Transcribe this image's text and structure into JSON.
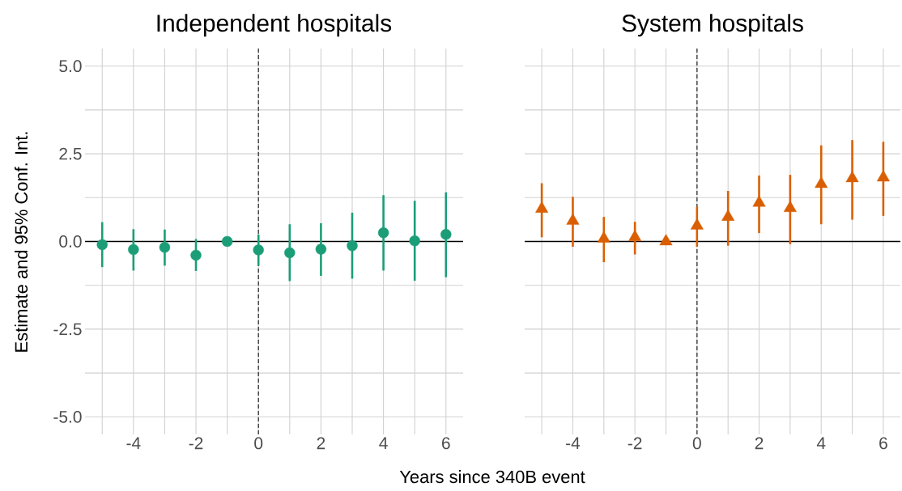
{
  "chart_data": [
    {
      "type": "scatter",
      "title": "Independent hospitals",
      "xlabel": "Years since 340B event",
      "ylabel": "Estimate and 95% Conf. Int.",
      "series": [
        {
          "color": "#1b9e77",
          "marker": "circle",
          "x": [
            -5,
            -4,
            -3,
            -2,
            -1,
            0,
            1,
            2,
            3,
            4,
            5,
            6
          ],
          "values": [
            -0.09,
            -0.23,
            -0.17,
            -0.39,
            0,
            -0.24,
            -0.32,
            -0.22,
            -0.12,
            0.25,
            0.02,
            0.2
          ],
          "errors": [
            [
              -0.73,
              0.55
            ],
            [
              -0.83,
              0.35
            ],
            [
              -0.69,
              0.34
            ],
            [
              -0.84,
              0.07
            ],
            null,
            [
              -0.69,
              0.2
            ],
            [
              -1.13,
              0.49
            ],
            [
              -0.98,
              0.52
            ],
            [
              -1.06,
              0.82
            ],
            [
              -0.83,
              1.32
            ],
            [
              -1.12,
              1.16
            ],
            [
              -1.02,
              1.4
            ]
          ]
        }
      ],
      "xlim": [
        -5.55,
        6.55
      ],
      "ylim": [
        -5.5,
        5.5
      ],
      "xticks": [
        {
          "value": -5,
          "label": null
        },
        -4,
        {
          "value": -3,
          "label": null
        },
        -2,
        {
          "value": -1,
          "label": null
        },
        0,
        {
          "value": 1,
          "label": null
        },
        2,
        {
          "value": 3,
          "label": null
        },
        4,
        {
          "value": 5,
          "label": null
        },
        6
      ],
      "yticks": [
        {
          "value": -5,
          "label": "-5.0"
        },
        {
          "value": -3.75,
          "label": null
        },
        {
          "value": -2.5,
          "label": "-2.5"
        },
        {
          "value": -1.25,
          "label": null
        },
        {
          "value": 0,
          "label": "0.0"
        },
        {
          "value": 1.25,
          "label": null
        },
        {
          "value": 2.5,
          "label": "2.5"
        },
        {
          "value": 3.75,
          "label": null
        },
        {
          "value": 5,
          "label": "5.0"
        }
      ],
      "grid": true,
      "ref_lines": [
        {
          "axis": "y",
          "value": 0,
          "color": "#000000",
          "line_style": "solid"
        },
        {
          "axis": "x",
          "value": 0,
          "color": "#333333",
          "line_style": "dashed"
        }
      ]
    },
    {
      "type": "scatter",
      "title": "System hospitals",
      "series": [
        {
          "color": "#d95f02",
          "marker": "triangle",
          "x": [
            -5,
            -4,
            -3,
            -2,
            -1,
            0,
            1,
            2,
            3,
            4,
            5,
            6
          ],
          "values": [
            0.93,
            0.59,
            0.08,
            0.12,
            0,
            0.45,
            0.7,
            1.1,
            0.95,
            1.64,
            1.8,
            1.82
          ],
          "errors": [
            [
              0.12,
              1.66
            ],
            [
              -0.15,
              1.27
            ],
            [
              -0.59,
              0.7
            ],
            [
              -0.37,
              0.56
            ],
            null,
            [
              -0.15,
              0.99
            ],
            [
              -0.12,
              1.44
            ],
            [
              0.24,
              1.88
            ],
            [
              -0.08,
              1.9
            ],
            [
              0.49,
              2.74
            ],
            [
              0.62,
              2.89
            ],
            [
              0.73,
              2.84
            ]
          ]
        }
      ],
      "xlim": [
        -5.55,
        6.55
      ],
      "ylim": [
        -5.5,
        5.5
      ],
      "xticks": [
        {
          "value": -5,
          "label": null
        },
        -4,
        {
          "value": -3,
          "label": null
        },
        -2,
        {
          "value": -1,
          "label": null
        },
        0,
        {
          "value": 1,
          "label": null
        },
        2,
        {
          "value": 3,
          "label": null
        },
        4,
        {
          "value": 5,
          "label": null
        },
        6
      ],
      "yticks": [
        {
          "value": -5,
          "label": null
        },
        {
          "value": -3.75,
          "label": null
        },
        {
          "value": -2.5,
          "label": null
        },
        {
          "value": -1.25,
          "label": null
        },
        {
          "value": 0,
          "label": null
        },
        {
          "value": 1.25,
          "label": null
        },
        {
          "value": 2.5,
          "label": null
        },
        {
          "value": 3.75,
          "label": null
        },
        {
          "value": 5,
          "label": null
        }
      ],
      "grid": true,
      "tick_labels": "x",
      "ref_lines": [
        {
          "axis": "y",
          "value": 0,
          "color": "#000000",
          "line_style": "solid"
        },
        {
          "axis": "x",
          "value": 0,
          "color": "#333333",
          "line_style": "dashed"
        }
      ]
    }
  ]
}
